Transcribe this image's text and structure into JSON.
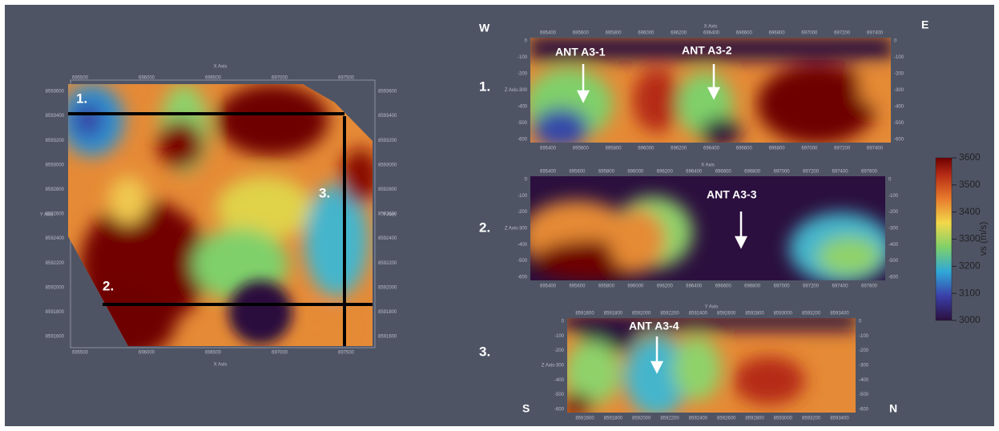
{
  "map": {
    "x_axis_title": "X Axis",
    "y_axis_title": "Y Axis",
    "x_ticks": [
      "695500",
      "696000",
      "696500",
      "697000",
      "697500"
    ],
    "y_ticks": [
      "8593600",
      "8593400",
      "8593200",
      "8593000",
      "8592800",
      "8592600",
      "8592400",
      "8592200",
      "8592000",
      "8591800",
      "8591600"
    ],
    "line_labels": [
      "1.",
      "2.",
      "3."
    ]
  },
  "compass": {
    "west": "W",
    "east": "E",
    "south": "S",
    "north": "N"
  },
  "sections": [
    {
      "label": "1.",
      "x_axis_title": "X Axis",
      "z_axis_title": "Z Axis",
      "annotations": [
        "ANT A3-1",
        "ANT A3-2"
      ],
      "x_ticks": [
        "695400",
        "695600",
        "695800",
        "696000",
        "696200",
        "696400",
        "696600",
        "696800",
        "697000",
        "697200",
        "697400"
      ],
      "depth_ticks": [
        "0",
        "-100",
        "-200",
        "-300",
        "-400",
        "-500",
        "-600"
      ]
    },
    {
      "label": "2.",
      "x_axis_title": "X Axis",
      "z_axis_title": "Z Axis",
      "annotations": [
        "ANT A3-3"
      ],
      "x_ticks": [
        "695400",
        "695600",
        "695800",
        "696000",
        "696200",
        "696400",
        "696600",
        "696800",
        "697000",
        "697200",
        "697400",
        "697600"
      ],
      "depth_ticks": [
        "0",
        "-100",
        "-200",
        "-300",
        "-400",
        "-500",
        "-600"
      ]
    },
    {
      "label": "3.",
      "x_axis_title": "Y Axis",
      "z_axis_title": "Z Axis",
      "annotations": [
        "ANT A3-4"
      ],
      "x_ticks": [
        "8591600",
        "8591800",
        "8592000",
        "8592200",
        "8592400",
        "8592600",
        "8592800",
        "8593000",
        "8593200",
        "8593400"
      ],
      "depth_ticks": [
        "0",
        "-100",
        "-200",
        "-300",
        "-400",
        "-500",
        "-600"
      ]
    }
  ],
  "colorbar": {
    "title": "vs (m/s)",
    "range": [
      3000,
      3600
    ],
    "ticks": [
      3000,
      3100,
      3200,
      3300,
      3400,
      3500,
      3600
    ]
  }
}
